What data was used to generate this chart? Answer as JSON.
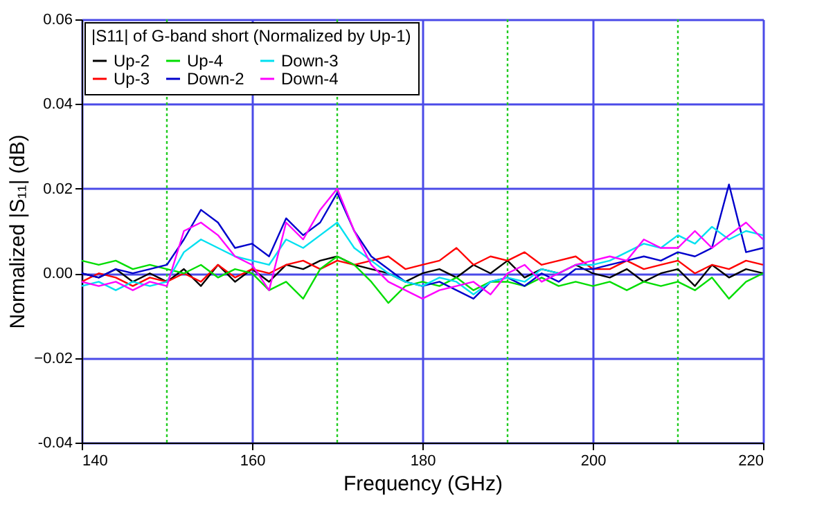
{
  "chart_data": {
    "type": "line",
    "xlabel": "Frequency (GHz)",
    "ylabel": "Normalized |S₁₁| (dB)",
    "legend_title": "|S11| of G-band short (Normalized by Up-1)",
    "legend": "top left",
    "grid": true,
    "xlim": [
      140,
      220
    ],
    "xticks": [
      140,
      160,
      180,
      200,
      220
    ],
    "ylim": [
      -0.04,
      0.06
    ],
    "yticks": [
      {
        "value": -0.04,
        "label": "-0.04"
      },
      -0.02,
      {
        "value": 0,
        "label": "0.00"
      },
      0.02,
      0.04,
      0.06
    ],
    "x": [
      140,
      142,
      144,
      146,
      148,
      150,
      152,
      154,
      156,
      158,
      160,
      162,
      164,
      166,
      168,
      170,
      172,
      174,
      176,
      178,
      180,
      182,
      184,
      186,
      188,
      190,
      192,
      194,
      196,
      198,
      200,
      202,
      204,
      206,
      208,
      210,
      212,
      214,
      216,
      218,
      220
    ],
    "ref_lines": [
      {
        "axis": "x",
        "value": 150,
        "color": "#22cc22",
        "line_style": "dotted"
      },
      {
        "axis": "x",
        "value": 170,
        "color": "#22cc22",
        "line_style": "dotted"
      },
      {
        "axis": "x",
        "value": 190,
        "color": "#22cc22",
        "line_style": "dotted"
      },
      {
        "axis": "x",
        "value": 210,
        "color": "#22cc22",
        "line_style": "dotted"
      }
    ],
    "series": [
      {
        "name": "Up-2",
        "color": "#000000",
        "values": [
          0.0,
          -0.001,
          0.001,
          -0.002,
          0.0,
          -0.002,
          0.001,
          -0.003,
          0.002,
          -0.002,
          0.001,
          -0.002,
          0.002,
          0.001,
          0.003,
          0.004,
          0.002,
          0.001,
          0.0,
          -0.002,
          0.0,
          0.001,
          -0.001,
          0.002,
          0.0,
          0.003,
          -0.001,
          0.001,
          0.0,
          0.002,
          0.0,
          -0.001,
          0.001,
          -0.002,
          0.0,
          0.001,
          -0.003,
          0.002,
          -0.001,
          0.001,
          0.0
        ]
      },
      {
        "name": "Up-3",
        "color": "#ff0000",
        "values": [
          -0.002,
          0.0,
          -0.001,
          -0.003,
          -0.001,
          -0.002,
          0.0,
          -0.002,
          0.002,
          -0.001,
          0.001,
          0.0,
          0.002,
          0.003,
          0.001,
          0.003,
          0.002,
          0.003,
          0.004,
          0.001,
          0.002,
          0.003,
          0.006,
          0.002,
          0.004,
          0.003,
          0.005,
          0.002,
          0.003,
          0.004,
          0.001,
          0.001,
          0.003,
          0.001,
          0.002,
          0.003,
          0.0,
          0.002,
          0.001,
          0.003,
          0.002
        ]
      },
      {
        "name": "Up-4",
        "color": "#00dd00",
        "values": [
          0.003,
          0.002,
          0.003,
          0.001,
          0.002,
          0.001,
          0.0,
          0.002,
          -0.001,
          0.001,
          0.0,
          -0.004,
          -0.002,
          -0.006,
          0.001,
          0.004,
          0.002,
          -0.002,
          -0.007,
          -0.003,
          -0.002,
          -0.003,
          -0.001,
          -0.004,
          -0.002,
          -0.002,
          -0.003,
          -0.001,
          -0.003,
          -0.002,
          -0.003,
          -0.002,
          -0.004,
          -0.002,
          -0.003,
          -0.002,
          -0.004,
          -0.001,
          -0.006,
          -0.002,
          0.0
        ]
      },
      {
        "name": "Down-2",
        "color": "#0000cc",
        "values": [
          0.0,
          -0.001,
          0.001,
          0.0,
          0.001,
          0.002,
          0.008,
          0.015,
          0.012,
          0.006,
          0.007,
          0.004,
          0.013,
          0.009,
          0.012,
          0.019,
          0.01,
          0.004,
          0.001,
          -0.002,
          -0.003,
          -0.002,
          -0.004,
          -0.006,
          -0.002,
          -0.001,
          -0.003,
          0.0,
          -0.002,
          0.001,
          0.001,
          0.002,
          0.003,
          0.004,
          0.003,
          0.005,
          0.004,
          0.006,
          0.021,
          0.005,
          0.006
        ]
      },
      {
        "name": "Down-3",
        "color": "#00e0f0",
        "values": [
          -0.003,
          -0.002,
          -0.004,
          -0.002,
          -0.003,
          -0.002,
          0.005,
          0.008,
          0.006,
          0.004,
          0.003,
          0.002,
          0.008,
          0.006,
          0.009,
          0.012,
          0.006,
          0.003,
          0.0,
          -0.002,
          -0.003,
          -0.001,
          -0.002,
          -0.005,
          -0.002,
          -0.001,
          -0.002,
          0.001,
          0.0,
          0.002,
          0.002,
          0.003,
          0.005,
          0.007,
          0.006,
          0.009,
          0.007,
          0.011,
          0.008,
          0.01,
          0.009
        ]
      },
      {
        "name": "Down-4",
        "color": "#ff00ff",
        "values": [
          -0.002,
          -0.003,
          -0.002,
          -0.004,
          -0.002,
          -0.003,
          0.01,
          0.012,
          0.009,
          0.004,
          0.002,
          -0.004,
          0.012,
          0.008,
          0.015,
          0.02,
          0.01,
          0.002,
          -0.002,
          -0.004,
          -0.006,
          -0.004,
          -0.003,
          -0.002,
          -0.005,
          0.0,
          0.002,
          -0.002,
          0.0,
          0.002,
          0.003,
          0.004,
          0.003,
          0.008,
          0.006,
          0.006,
          0.01,
          0.006,
          0.009,
          0.012,
          0.008
        ]
      }
    ]
  }
}
